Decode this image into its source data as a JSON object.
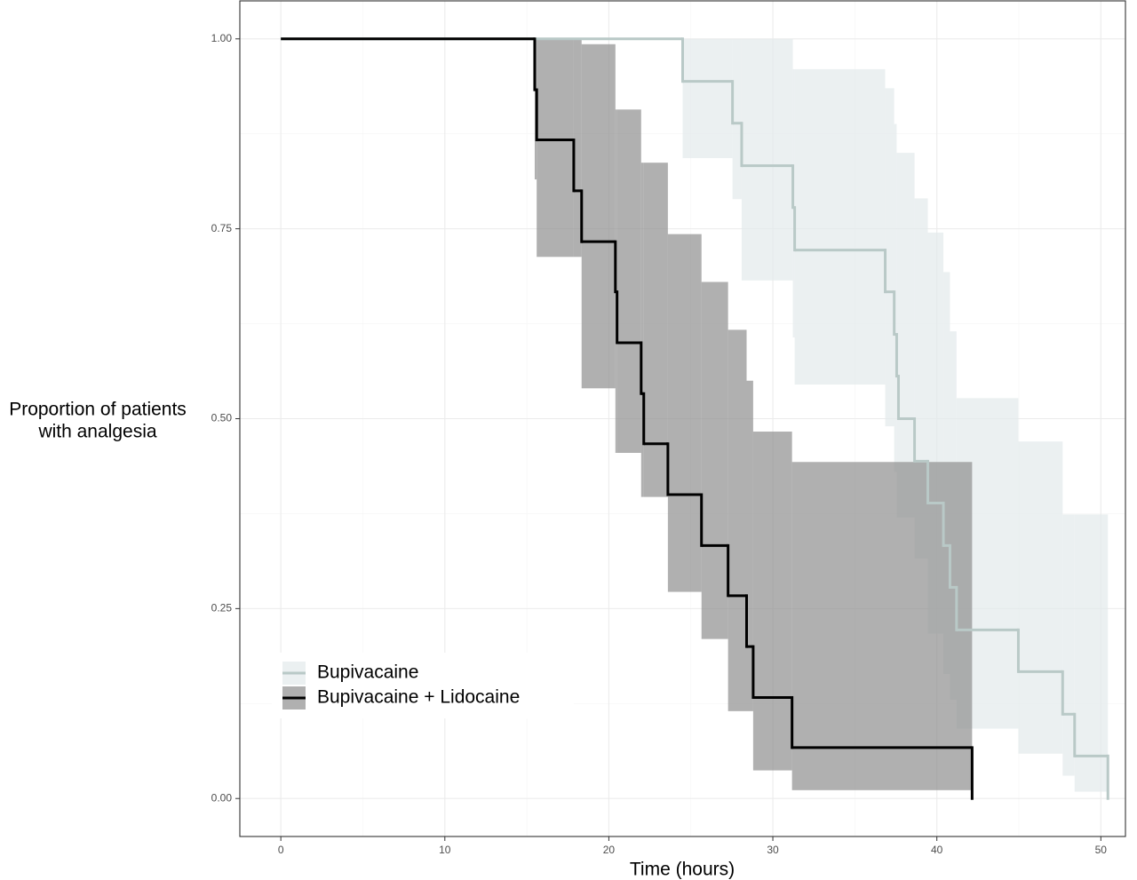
{
  "chart_data": {
    "type": "step",
    "xlabel": "Time (hours)",
    "ylabel": [
      "Proportion of patients",
      "with analgesia"
    ],
    "xlim": [
      -2.5,
      51.5
    ],
    "ylim": [
      -0.05,
      1.05
    ],
    "xticks": [
      0,
      10,
      20,
      30,
      40,
      50
    ],
    "yticks": [
      {
        "value": 0,
        "label": "0.00"
      },
      {
        "value": 0.25,
        "label": "0.25"
      },
      {
        "value": 0.5,
        "label": "0.50"
      },
      {
        "value": 0.75,
        "label": "0.75"
      },
      {
        "value": 1,
        "label": "1.00"
      }
    ],
    "minor_xticks": [
      5,
      15,
      25,
      35,
      45
    ],
    "minor_yticks": [
      0.125,
      0.375,
      0.625,
      0.875
    ],
    "grid": true,
    "legend": "bottom-left",
    "series": [
      {
        "name": "Bupivacaine",
        "color": "#b9c9c7",
        "band_color": "#e3eaeb",
        "x": [
          0,
          24.5,
          27.54,
          28.1,
          31.22,
          31.33,
          36.85,
          37.4,
          37.55,
          37.66,
          38.64,
          39.45,
          40.4,
          40.8,
          41.2,
          44.97,
          47.67,
          48.4,
          50.43
        ],
        "values": [
          1,
          0.944,
          0.889,
          0.833,
          0.778,
          0.722,
          0.667,
          0.611,
          0.556,
          0.5,
          0.444,
          0.389,
          0.333,
          0.278,
          0.222,
          0.167,
          0.111,
          0.056,
          0
        ],
        "upper": [
          1,
          1,
          1,
          1,
          0.96,
          0.96,
          0.935,
          0.888,
          0.85,
          0.85,
          0.79,
          0.745,
          0.693,
          0.615,
          0.527,
          0.47,
          0.374,
          0.374,
          null
        ],
        "lower": [
          1,
          0.843,
          0.789,
          0.682,
          0.607,
          0.545,
          0.49,
          0.43,
          0.37,
          0.37,
          0.316,
          0.217,
          0.164,
          0.13,
          0.092,
          0.059,
          0.03,
          0.009,
          null
        ]
      },
      {
        "name": "Bupivacaine + Lidocaine",
        "color": "#000000",
        "band_color": "#8f8f8f",
        "x": [
          0,
          15.48,
          15.6,
          17.86,
          18.34,
          20.4,
          20.5,
          21.97,
          22.13,
          23.6,
          25.65,
          27.27,
          28.4,
          28.8,
          31.17,
          42.15
        ],
        "values": [
          1,
          0.933,
          0.867,
          0.8,
          0.733,
          0.667,
          0.6,
          0.533,
          0.467,
          0.4,
          0.333,
          0.267,
          0.2,
          0.133,
          0.067,
          0
        ],
        "upper": [
          1,
          1,
          1,
          1,
          0.993,
          0.907,
          0.907,
          0.837,
          0.837,
          0.743,
          0.68,
          0.617,
          0.55,
          0.483,
          0.443,
          null
        ],
        "lower": [
          1,
          0.815,
          0.713,
          0.713,
          0.54,
          0.455,
          0.455,
          0.397,
          0.397,
          0.272,
          0.21,
          0.115,
          0.115,
          0.037,
          0.011,
          null
        ]
      }
    ]
  }
}
